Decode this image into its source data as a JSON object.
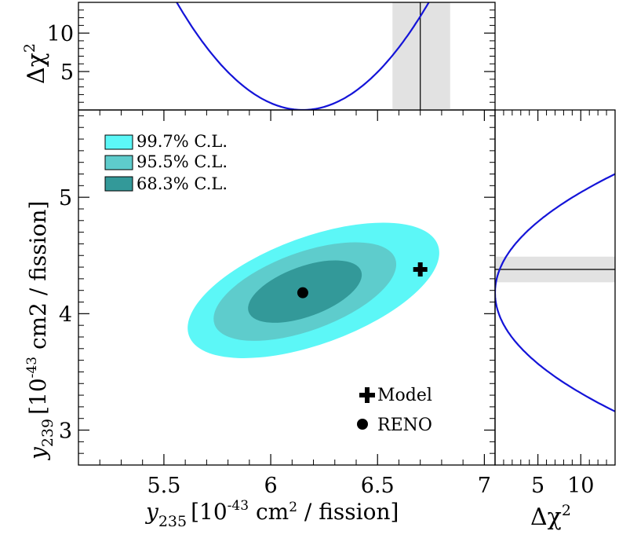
{
  "colors": {
    "cl997": "#5cf7f7",
    "cl955": "#5ecccc",
    "cl683": "#339999",
    "curve": "#1414d8",
    "band": "#e2e2e2",
    "axis": "#000000"
  },
  "chart_data": [
    {
      "id": "main",
      "type": "contour",
      "xlabel": {
        "var": "y",
        "sub": "235",
        "units": "[10",
        "exp": "-43",
        "rest": " cm",
        "exp2": "2",
        "tail": " / fission]"
      },
      "ylabel": {
        "var": "y",
        "sub": "239",
        "units": "[10",
        "exp": "-43",
        "rest": " cm2 / fission]"
      },
      "xlim": [
        5.1,
        7.05
      ],
      "ylim": [
        2.7,
        5.75
      ],
      "xticks": [
        5.5,
        6,
        6.5,
        7
      ],
      "xtick_labels": [
        "5.5",
        "6",
        "6.5",
        "7"
      ],
      "yticks": [
        3,
        4,
        5
      ],
      "ytick_labels": [
        "3",
        "4",
        "5"
      ],
      "contours": [
        {
          "label": "99.7% C.L.",
          "cx": 6.2,
          "cy": 4.2,
          "rx": 0.62,
          "ry": 0.92,
          "angle": -20
        },
        {
          "label": "95.5% C.L.",
          "cx": 6.16,
          "cy": 4.19,
          "rx": 0.45,
          "ry": 0.67,
          "angle": -20
        },
        {
          "label": "68.3% C.L.",
          "cx": 6.16,
          "cy": 4.19,
          "rx": 0.28,
          "ry": 0.43,
          "angle": -20
        }
      ],
      "points": [
        {
          "label": "Model",
          "marker": "cross",
          "x": 6.7,
          "y": 4.38
        },
        {
          "label": "RENO",
          "marker": "circle",
          "x": 6.15,
          "y": 4.18
        }
      ]
    },
    {
      "id": "top",
      "type": "line",
      "ylabel": {
        "var": "Δχ",
        "exp": "2"
      },
      "ylim": [
        0,
        14
      ],
      "yticks": [
        5,
        10
      ],
      "ytick_labels": [
        "5",
        "10"
      ],
      "minimum_x": 6.15,
      "model_band": [
        6.57,
        6.84
      ],
      "model_value": 6.7
    },
    {
      "id": "right",
      "type": "line",
      "xlabel": {
        "var": "Δχ",
        "exp": "2"
      },
      "xlim": [
        0,
        14
      ],
      "xticks": [
        5,
        10
      ],
      "xtick_labels": [
        "5",
        "10"
      ],
      "minimum_y": 4.18,
      "model_band": [
        4.27,
        4.49
      ],
      "model_value": 4.38
    }
  ]
}
